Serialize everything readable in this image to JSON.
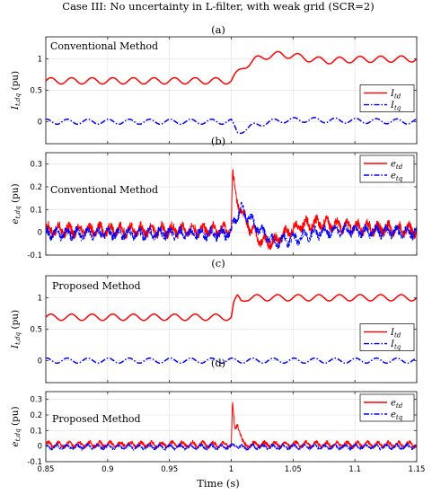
{
  "figure": {
    "title": "Case III: No uncertainty in L-filter, with weak grid (SCR=2)",
    "xlabel": "Time (s)",
    "xlim": [
      0.85,
      1.15
    ],
    "xticks": [
      "0.85",
      "0.9",
      "0.95",
      "1",
      "1.05",
      "1.1",
      "1.15"
    ]
  },
  "colors": {
    "red": "#ff0000",
    "blue": "#0000ff"
  },
  "chart_data": [
    {
      "type": "line",
      "panel_label": "(a)",
      "annotation": "Conventional Method",
      "ylabel": "I",
      "ylabel_sub": "t,dq",
      "ylabel_unit": " (pu)",
      "ylim": [
        -0.35,
        1.35
      ],
      "yticks": [
        "0",
        "0.5",
        "1"
      ],
      "legend_position": "right",
      "series": [
        {
          "name": "I",
          "sub": "td",
          "color": "red",
          "dash": "solid",
          "baseline": 0.65,
          "amplitude": 0.05,
          "ripple_freq": 60,
          "noise": 0,
          "x": [
            0.85,
            1.0,
            1.003,
            1.01,
            1.02,
            1.03,
            1.04,
            1.05,
            1.06,
            1.07,
            1.08,
            1.09,
            1.1,
            1.15
          ],
          "y": [
            0.65,
            0.65,
            0.72,
            0.88,
            0.99,
            1.05,
            1.07,
            1.05,
            1.01,
            0.98,
            0.97,
            0.98,
            0.99,
            1.0
          ]
        },
        {
          "name": "I",
          "sub": "tq",
          "color": "blue",
          "dash": "dashdot",
          "baseline": 0.0,
          "amplitude": 0.04,
          "ripple_freq": 60,
          "noise": 0,
          "x": [
            0.85,
            1.0,
            1.005,
            1.01,
            1.02,
            1.03,
            1.04,
            1.06,
            1.08,
            1.15
          ],
          "y": [
            0.0,
            0.0,
            -0.17,
            -0.13,
            -0.05,
            -0.01,
            0.02,
            0.03,
            0.02,
            0.0
          ]
        }
      ]
    },
    {
      "type": "line",
      "panel_label": "(b)",
      "annotation": "Conventional Method",
      "ylabel": "e",
      "ylabel_sub": "t,dq",
      "ylabel_unit": " (pu)",
      "ylim": [
        -0.1,
        0.35
      ],
      "yticks": [
        "-0.1",
        "0",
        "0.1",
        "0.2",
        "0.3"
      ],
      "legend_position": "top-right",
      "series": [
        {
          "name": "e",
          "sub": "td",
          "color": "red",
          "dash": "solid",
          "baseline": 0.01,
          "amplitude": 0.02,
          "ripple_freq": 120,
          "noise": 0.02,
          "x": [
            0.85,
            1.0,
            1.001,
            1.003,
            1.008,
            1.015,
            1.025,
            1.035,
            1.045,
            1.055,
            1.07,
            1.09,
            1.11,
            1.15
          ],
          "y": [
            0.01,
            0.01,
            0.26,
            0.17,
            0.09,
            0.02,
            -0.04,
            -0.04,
            0.0,
            0.03,
            0.04,
            0.03,
            0.02,
            0.01
          ]
        },
        {
          "name": "e",
          "sub": "tq",
          "color": "blue",
          "dash": "dashdot",
          "baseline": -0.005,
          "amplitude": 0.018,
          "ripple_freq": 120,
          "noise": 0.018,
          "x": [
            0.85,
            1.0,
            1.002,
            1.008,
            1.015,
            1.025,
            1.035,
            1.05,
            1.07,
            1.09,
            1.11,
            1.15
          ],
          "y": [
            -0.005,
            -0.005,
            0.05,
            0.1,
            0.06,
            0.0,
            -0.04,
            -0.03,
            0.0,
            0.01,
            0.005,
            0.0
          ]
        }
      ]
    },
    {
      "type": "line",
      "panel_label": "(c)",
      "annotation": "Proposed Method",
      "ylabel": "I",
      "ylabel_sub": "t,dq",
      "ylabel_unit": " (pu)",
      "ylim": [
        -0.35,
        1.35
      ],
      "yticks": [
        "0",
        "0.5",
        "1"
      ],
      "legend_position": "right",
      "series": [
        {
          "name": "I",
          "sub": "td",
          "color": "red",
          "dash": "solid",
          "baseline": 0.69,
          "amplitude": 0.05,
          "ripple_freq": 60,
          "noise": 0,
          "x": [
            0.85,
            1.0,
            1.002,
            1.005,
            1.008,
            1.012,
            1.15
          ],
          "y": [
            0.69,
            0.69,
            0.9,
            1.0,
            0.95,
            1.0,
            1.0
          ]
        },
        {
          "name": "I",
          "sub": "tq",
          "color": "blue",
          "dash": "dashdot",
          "baseline": 0.0,
          "amplitude": 0.04,
          "ripple_freq": 60,
          "noise": 0,
          "x": [
            0.85,
            1.15
          ],
          "y": [
            0.0,
            0.0
          ]
        }
      ]
    },
    {
      "type": "line",
      "panel_label": "(d)",
      "annotation": "Proposed Method",
      "ylabel": "e",
      "ylabel_sub": "t,dq",
      "ylabel_unit": " (pu)",
      "ylim": [
        -0.1,
        0.35
      ],
      "yticks": [
        "-0.1",
        "0",
        "0.1",
        "0.2",
        "0.3"
      ],
      "legend_position": "top-right",
      "series": [
        {
          "name": "e",
          "sub": "td",
          "color": "red",
          "dash": "solid",
          "baseline": 0.01,
          "amplitude": 0.015,
          "ripple_freq": 120,
          "noise": 0.012,
          "x": [
            0.85,
            1.0,
            1.001,
            1.003,
            1.005,
            1.007,
            1.009,
            1.011,
            1.015,
            1.15
          ],
          "y": [
            0.01,
            0.01,
            0.27,
            0.09,
            0.15,
            0.1,
            0.03,
            0.0,
            0.01,
            0.01
          ]
        },
        {
          "name": "e",
          "sub": "tq",
          "color": "blue",
          "dash": "dashdot",
          "baseline": -0.005,
          "amplitude": 0.012,
          "ripple_freq": 120,
          "noise": 0.01,
          "x": [
            0.85,
            1.0,
            1.003,
            1.008,
            1.015,
            1.15
          ],
          "y": [
            -0.005,
            -0.005,
            0.01,
            -0.01,
            -0.005,
            -0.005
          ]
        }
      ]
    }
  ]
}
